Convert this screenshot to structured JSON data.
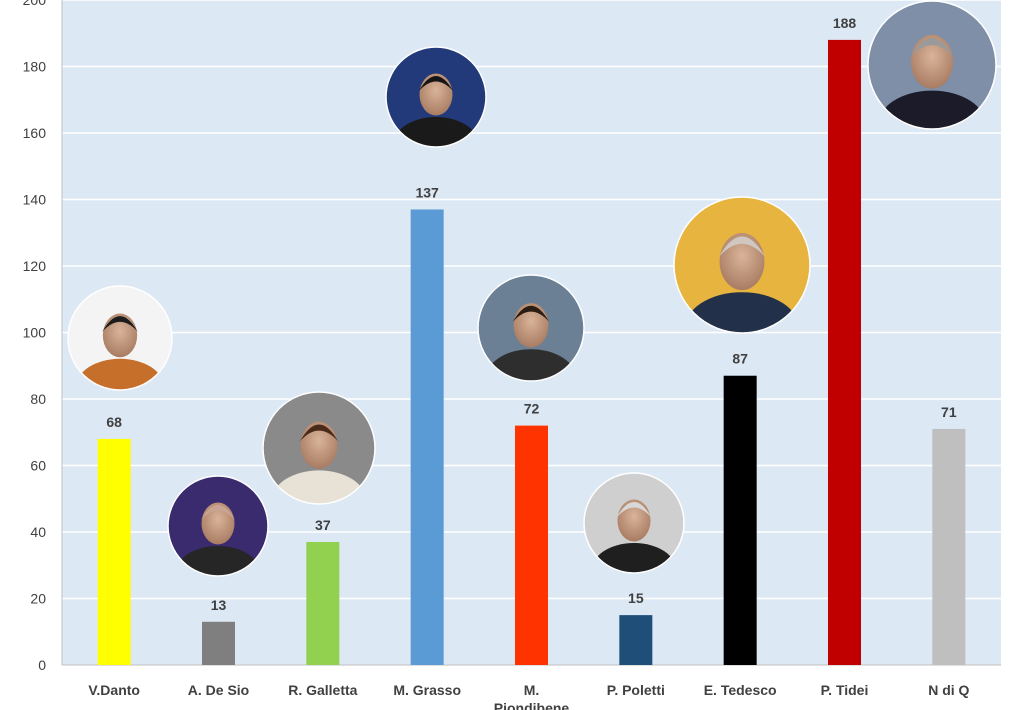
{
  "chart_data": {
    "type": "bar",
    "title": "",
    "xlabel": "",
    "ylabel": "",
    "ylim": [
      0,
      200
    ],
    "ytick_step": 20,
    "grid": true,
    "plot_background": "#dde8f5",
    "grid_color": "#ffffff",
    "categories": [
      "V.Danto",
      "A. De Sio",
      "R. Galletta",
      "M. Grasso",
      "M. Piondibene",
      "P. Poletti",
      "E. Tedesco",
      "P. Tidei",
      "N di Q"
    ],
    "category_labels_line1": [
      "V.Danto",
      "A. De Sio",
      "R. Galletta",
      "M. Grasso",
      "M.",
      "P. Poletti",
      "E. Tedesco",
      "P. Tidei",
      "N di Q"
    ],
    "category_labels_line2": [
      "",
      "",
      "",
      "",
      "Piondibene",
      "",
      "",
      "",
      ""
    ],
    "values": [
      68,
      13,
      37,
      137,
      72,
      15,
      87,
      188,
      71
    ],
    "colors": [
      "#ffff00",
      "#7f7f7f",
      "#92d050",
      "#5b9bd5",
      "#ff3300",
      "#1f4e79",
      "#000000",
      "#c00000",
      "#bfbfbf"
    ],
    "portraits": [
      true,
      true,
      true,
      true,
      true,
      true,
      true,
      true,
      false
    ]
  }
}
